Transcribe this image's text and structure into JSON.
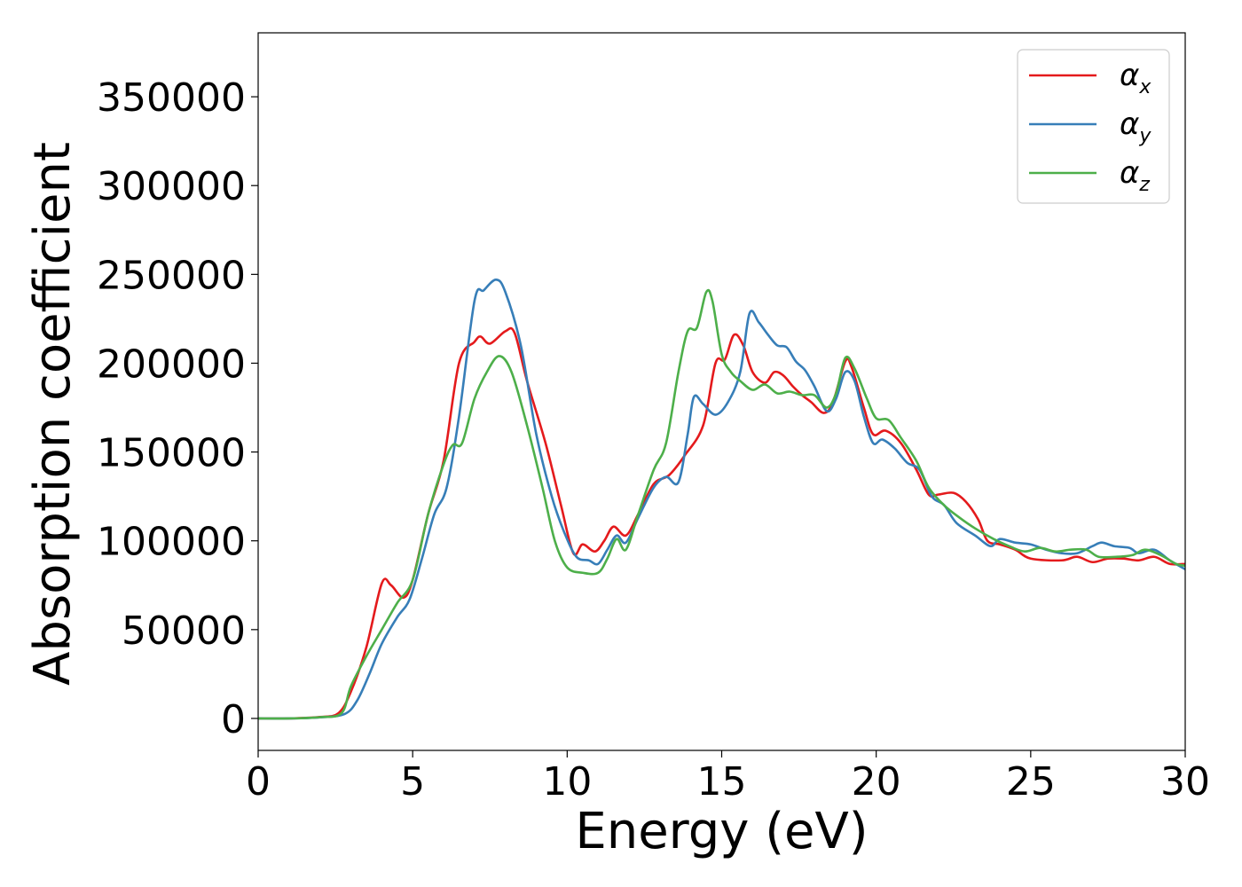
{
  "chart_data": {
    "type": "line",
    "xlabel": "Energy (eV)",
    "ylabel": "Absorption coefficient",
    "xlim": [
      0,
      30
    ],
    "ylim": [
      -18000,
      386000
    ],
    "xticks": [
      "0",
      "5",
      "10",
      "15",
      "20",
      "25",
      "30"
    ],
    "xtick_values": [
      0,
      5,
      10,
      15,
      20,
      25,
      30
    ],
    "yticks": [
      "0",
      "50000",
      "100000",
      "150000",
      "200000",
      "250000",
      "300000",
      "350000"
    ],
    "ytick_values": [
      0,
      50000,
      100000,
      150000,
      200000,
      250000,
      300000,
      350000
    ],
    "grid": false,
    "legend_position": "top-right",
    "series": [
      {
        "name": "αx",
        "symbol": "α",
        "subscript": "x",
        "color": "#e41a1c",
        "points": [
          [
            0,
            0
          ],
          [
            1,
            0
          ],
          [
            2,
            800
          ],
          [
            2.6,
            3000
          ],
          [
            3,
            15000
          ],
          [
            3.5,
            40000
          ],
          [
            4,
            76000
          ],
          [
            4.3,
            75000
          ],
          [
            4.7,
            68000
          ],
          [
            5,
            78000
          ],
          [
            5.5,
            115000
          ],
          [
            6,
            145000
          ],
          [
            6.5,
            200000
          ],
          [
            7,
            212000
          ],
          [
            7.2,
            215000
          ],
          [
            7.5,
            211000
          ],
          [
            8,
            218000
          ],
          [
            8.3,
            217000
          ],
          [
            8.7,
            190000
          ],
          [
            9.3,
            155000
          ],
          [
            9.8,
            120000
          ],
          [
            10.2,
            93000
          ],
          [
            10.5,
            98000
          ],
          [
            10.9,
            94000
          ],
          [
            11.2,
            100000
          ],
          [
            11.5,
            108000
          ],
          [
            11.9,
            103000
          ],
          [
            12.3,
            115000
          ],
          [
            12.8,
            132000
          ],
          [
            13.3,
            137000
          ],
          [
            13.8,
            148000
          ],
          [
            14.4,
            165000
          ],
          [
            14.8,
            200000
          ],
          [
            15.1,
            202000
          ],
          [
            15.4,
            216000
          ],
          [
            15.7,
            210000
          ],
          [
            16,
            195000
          ],
          [
            16.4,
            189000
          ],
          [
            16.7,
            195000
          ],
          [
            17,
            193000
          ],
          [
            17.3,
            187000
          ],
          [
            17.6,
            182000
          ],
          [
            17.9,
            178000
          ],
          [
            18.3,
            172000
          ],
          [
            18.6,
            178000
          ],
          [
            19,
            201000
          ],
          [
            19.2,
            198000
          ],
          [
            19.6,
            175000
          ],
          [
            19.9,
            160000
          ],
          [
            20.3,
            162000
          ],
          [
            20.8,
            155000
          ],
          [
            21.3,
            140000
          ],
          [
            21.7,
            126000
          ],
          [
            22,
            126000
          ],
          [
            22.5,
            127000
          ],
          [
            22.9,
            122000
          ],
          [
            23.3,
            112000
          ],
          [
            23.6,
            100000
          ],
          [
            24,
            98000
          ],
          [
            24.5,
            95000
          ],
          [
            25,
            90000
          ],
          [
            26,
            89000
          ],
          [
            26.5,
            91000
          ],
          [
            27,
            88000
          ],
          [
            27.5,
            90000
          ],
          [
            28,
            90000
          ],
          [
            28.5,
            89000
          ],
          [
            29,
            91000
          ],
          [
            29.5,
            87000
          ],
          [
            30,
            87000
          ]
        ]
      },
      {
        "name": "αy",
        "symbol": "α",
        "subscript": "y",
        "color": "#377eb8",
        "points": [
          [
            0,
            0
          ],
          [
            1,
            0
          ],
          [
            2,
            600
          ],
          [
            2.8,
            2500
          ],
          [
            3.2,
            10000
          ],
          [
            3.6,
            25000
          ],
          [
            4,
            42000
          ],
          [
            4.5,
            57000
          ],
          [
            4.9,
            67000
          ],
          [
            5.3,
            90000
          ],
          [
            5.7,
            115000
          ],
          [
            6.1,
            130000
          ],
          [
            6.5,
            170000
          ],
          [
            7,
            235000
          ],
          [
            7.3,
            241000
          ],
          [
            7.7,
            247000
          ],
          [
            8,
            240000
          ],
          [
            8.5,
            210000
          ],
          [
            9,
            160000
          ],
          [
            9.5,
            125000
          ],
          [
            9.9,
            105000
          ],
          [
            10.3,
            91000
          ],
          [
            10.7,
            89000
          ],
          [
            11,
            87000
          ],
          [
            11.3,
            95000
          ],
          [
            11.6,
            103000
          ],
          [
            11.9,
            99000
          ],
          [
            12.3,
            113000
          ],
          [
            12.8,
            130000
          ],
          [
            13.2,
            136000
          ],
          [
            13.6,
            133000
          ],
          [
            13.9,
            160000
          ],
          [
            14.1,
            181000
          ],
          [
            14.4,
            177000
          ],
          [
            14.8,
            171000
          ],
          [
            15.2,
            178000
          ],
          [
            15.6,
            195000
          ],
          [
            15.9,
            228000
          ],
          [
            16.2,
            223000
          ],
          [
            16.5,
            216000
          ],
          [
            16.8,
            210000
          ],
          [
            17.1,
            209000
          ],
          [
            17.4,
            201000
          ],
          [
            17.7,
            196000
          ],
          [
            18,
            187000
          ],
          [
            18.4,
            173000
          ],
          [
            18.7,
            180000
          ],
          [
            19,
            195000
          ],
          [
            19.3,
            190000
          ],
          [
            19.6,
            170000
          ],
          [
            19.9,
            155000
          ],
          [
            20.2,
            157000
          ],
          [
            20.6,
            152000
          ],
          [
            21,
            144000
          ],
          [
            21.4,
            140000
          ],
          [
            21.8,
            125000
          ],
          [
            22.2,
            120000
          ],
          [
            22.6,
            110000
          ],
          [
            23.2,
            103000
          ],
          [
            23.7,
            97000
          ],
          [
            24,
            101000
          ],
          [
            24.5,
            99000
          ],
          [
            25,
            98000
          ],
          [
            25.5,
            95000
          ],
          [
            26,
            93000
          ],
          [
            26.5,
            93000
          ],
          [
            27,
            97000
          ],
          [
            27.3,
            99000
          ],
          [
            27.7,
            97000
          ],
          [
            28.2,
            96000
          ],
          [
            28.5,
            93000
          ],
          [
            29,
            95000
          ],
          [
            29.5,
            89000
          ],
          [
            30,
            84000
          ]
        ]
      },
      {
        "name": "αz",
        "symbol": "α",
        "subscript": "z",
        "color": "#4daf4a",
        "points": [
          [
            0,
            0
          ],
          [
            1,
            0
          ],
          [
            2,
            700
          ],
          [
            2.7,
            3000
          ],
          [
            3,
            18000
          ],
          [
            3.5,
            35000
          ],
          [
            4,
            50000
          ],
          [
            4.5,
            65000
          ],
          [
            5,
            78000
          ],
          [
            5.5,
            115000
          ],
          [
            6,
            143000
          ],
          [
            6.3,
            154000
          ],
          [
            6.6,
            155000
          ],
          [
            7,
            180000
          ],
          [
            7.4,
            195000
          ],
          [
            7.8,
            204000
          ],
          [
            8.2,
            195000
          ],
          [
            8.7,
            165000
          ],
          [
            9.2,
            130000
          ],
          [
            9.6,
            100000
          ],
          [
            10,
            85000
          ],
          [
            10.5,
            82000
          ],
          [
            11,
            82000
          ],
          [
            11.3,
            90000
          ],
          [
            11.6,
            101000
          ],
          [
            11.9,
            95000
          ],
          [
            12.3,
            115000
          ],
          [
            12.8,
            140000
          ],
          [
            13.2,
            155000
          ],
          [
            13.6,
            195000
          ],
          [
            13.9,
            218000
          ],
          [
            14.2,
            220000
          ],
          [
            14.5,
            240000
          ],
          [
            14.7,
            235000
          ],
          [
            15,
            205000
          ],
          [
            15.3,
            195000
          ],
          [
            15.6,
            190000
          ],
          [
            16,
            185000
          ],
          [
            16.4,
            188000
          ],
          [
            16.8,
            183000
          ],
          [
            17.2,
            184000
          ],
          [
            17.6,
            182000
          ],
          [
            18,
            182000
          ],
          [
            18.4,
            175000
          ],
          [
            18.7,
            183000
          ],
          [
            19,
            203000
          ],
          [
            19.3,
            197000
          ],
          [
            19.7,
            180000
          ],
          [
            20,
            169000
          ],
          [
            20.4,
            168000
          ],
          [
            20.8,
            158000
          ],
          [
            21.3,
            145000
          ],
          [
            21.7,
            130000
          ],
          [
            22.2,
            120000
          ],
          [
            22.7,
            113000
          ],
          [
            23.2,
            107000
          ],
          [
            23.8,
            101000
          ],
          [
            24.3,
            97000
          ],
          [
            24.8,
            94000
          ],
          [
            25.3,
            96000
          ],
          [
            25.8,
            94000
          ],
          [
            26.3,
            95000
          ],
          [
            26.8,
            95000
          ],
          [
            27.2,
            91000
          ],
          [
            27.8,
            91000
          ],
          [
            28.3,
            92000
          ],
          [
            28.7,
            95000
          ],
          [
            29.2,
            92000
          ],
          [
            29.7,
            87000
          ],
          [
            30,
            86000
          ]
        ]
      }
    ]
  }
}
